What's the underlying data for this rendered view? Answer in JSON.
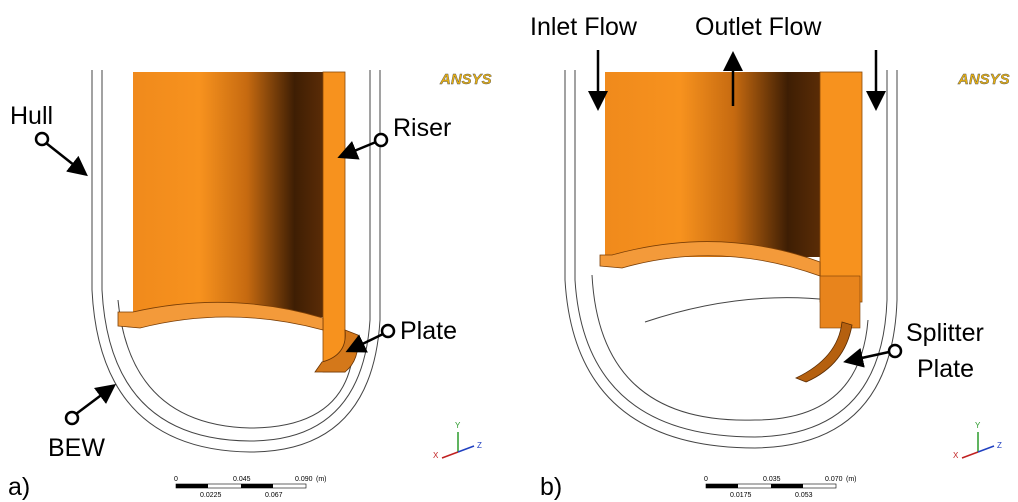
{
  "panels": [
    {
      "label": "a)",
      "logo": "ANSYS",
      "callouts": [
        "Hull",
        "Riser",
        "Plate",
        "BEW"
      ],
      "scale": {
        "ticks": [
          "0",
          "0.045",
          "0.090"
        ],
        "unit": "(m)",
        "sub_ticks": [
          "0.0225",
          "0.067"
        ]
      },
      "triad": [
        "Y",
        "X",
        "Z"
      ]
    },
    {
      "label": "b)",
      "logo": "ANSYS",
      "callouts": [
        "Inlet Flow",
        "Outlet Flow",
        "Splitter",
        "Plate"
      ],
      "scale": {
        "ticks": [
          "0",
          "0.035",
          "0.070"
        ],
        "unit": "(m)",
        "sub_ticks": [
          "0.0175",
          "0.053"
        ]
      },
      "triad": [
        "Y",
        "X",
        "Z"
      ]
    }
  ]
}
